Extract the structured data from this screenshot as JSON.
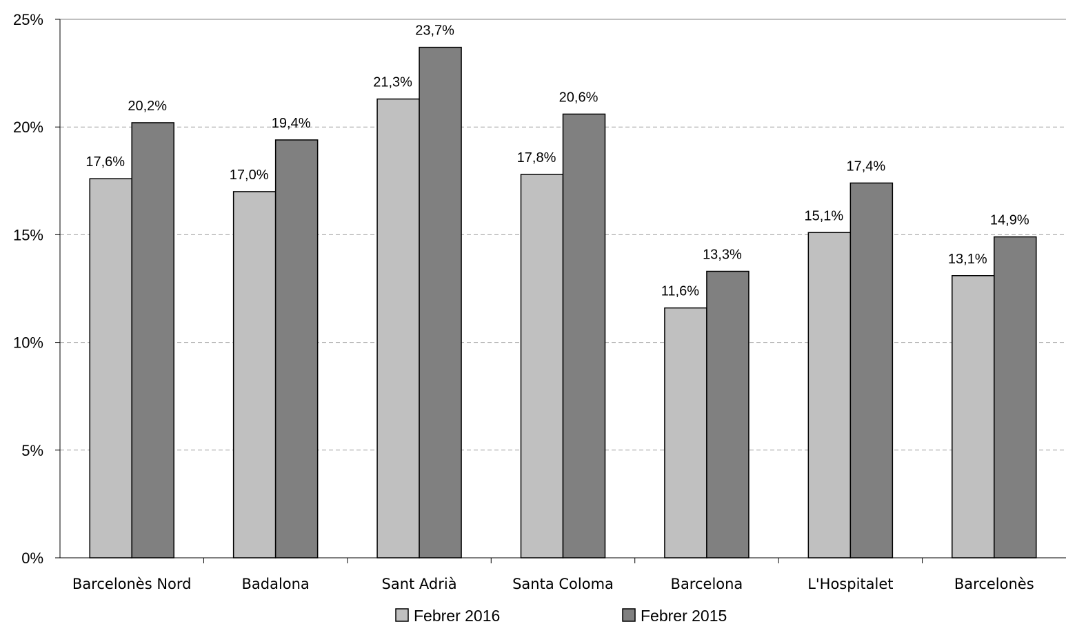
{
  "chart_data": {
    "type": "bar",
    "categories": [
      "Barcelonès Nord",
      "Badalona",
      "Sant Adrià",
      "Santa Coloma",
      "Barcelona",
      "L'Hospitalet",
      "Barcelonès"
    ],
    "series": [
      {
        "name": "Febrer 2016",
        "color": "#c0c0c0",
        "values": [
          17.6,
          17.0,
          21.3,
          17.8,
          11.6,
          15.1,
          13.1
        ],
        "labels": [
          "17,6%",
          "17,0%",
          "21,3%",
          "17,8%",
          "11,6%",
          "15,1%",
          "13,1%"
        ]
      },
      {
        "name": "Febrer 2015",
        "color": "#808080",
        "values": [
          20.2,
          19.4,
          23.7,
          20.6,
          13.3,
          17.4,
          14.9
        ],
        "labels": [
          "20,2%",
          "19,4%",
          "23,7%",
          "20,6%",
          "13,3%",
          "17,4%",
          "14,9%"
        ]
      }
    ],
    "ylim": [
      0,
      25
    ],
    "yticks": [
      0,
      5,
      10,
      15,
      20,
      25
    ],
    "ytick_labels": [
      "0%",
      "5%",
      "10%",
      "15%",
      "20%",
      "25%"
    ],
    "grid": true,
    "legend": "bottom-center",
    "title": "",
    "xlabel": "",
    "ylabel": ""
  }
}
